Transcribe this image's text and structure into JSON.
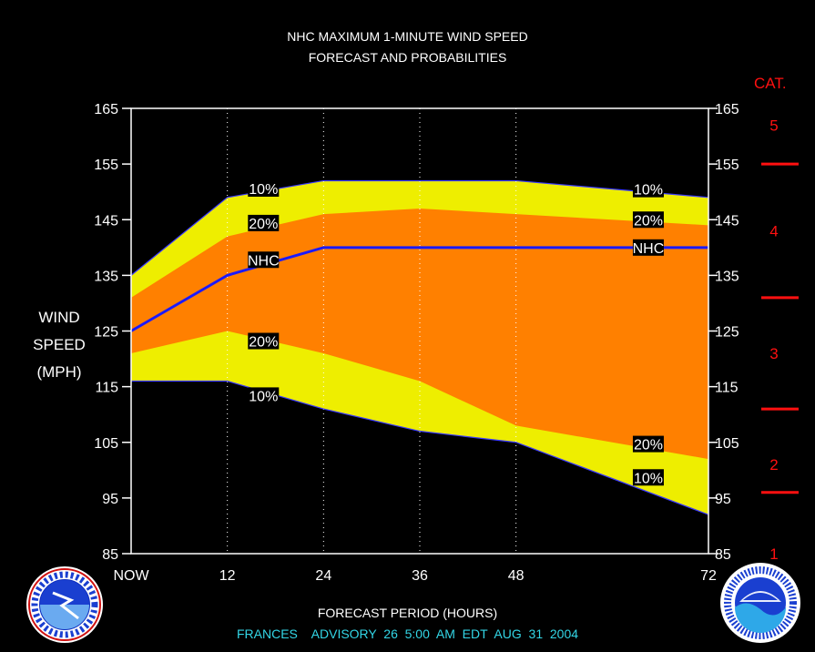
{
  "title_line1": "NHC MAXIMUM 1-MINUTE WIND SPEED",
  "title_line2": "FORECAST AND PROBABILITIES",
  "ylabel_lines": [
    "WIND",
    "SPEED",
    "(MPH)"
  ],
  "xlabel": "FORECAST PERIOD (HOURS)",
  "advisory": "FRANCES    ADVISORY  26  5:00  AM  EDT  AUG  31  2004",
  "category_title": "CAT.",
  "colors": {
    "background": "#000000",
    "band_outer": "#eeee00",
    "band_inner": "#ff8000",
    "forecast_line": "#1a1aff",
    "category_text": "#ff1010",
    "advisory_text": "#33d6e6"
  },
  "chart_data": {
    "type": "area",
    "x": [
      0,
      12,
      24,
      36,
      48,
      72
    ],
    "x_tick_labels": [
      {
        "x": 0,
        "label": "NOW"
      },
      {
        "x": 12,
        "label": "12"
      },
      {
        "x": 24,
        "label": "24"
      },
      {
        "x": 36,
        "label": "36"
      },
      {
        "x": 48,
        "label": "48"
      },
      {
        "x": 72,
        "label": "72"
      }
    ],
    "xlim": [
      0,
      72
    ],
    "ylim": [
      85,
      165
    ],
    "y_ticks": [
      85,
      95,
      105,
      115,
      125,
      135,
      145,
      155,
      165
    ],
    "grid": "vertical dotted at 12, 24, 36, 48",
    "series": [
      {
        "name": "10%",
        "role": "upper_outer",
        "values": [
          135,
          149,
          152,
          152,
          152,
          149
        ]
      },
      {
        "name": "20%",
        "role": "upper_inner",
        "values": [
          131,
          142,
          146,
          147,
          146,
          144
        ]
      },
      {
        "name": "NHC",
        "role": "forecast",
        "values": [
          125,
          135,
          140,
          140,
          140,
          140
        ]
      },
      {
        "name": "20%",
        "role": "lower_inner",
        "values": [
          121,
          125,
          121,
          116,
          108,
          102
        ]
      },
      {
        "name": "10%",
        "role": "lower_outer",
        "values": [
          116,
          116,
          111,
          107,
          105,
          92
        ]
      }
    ],
    "annotations": [
      {
        "text": "10%",
        "x": 16.5,
        "y": 150.6
      },
      {
        "text": "20%",
        "x": 16.5,
        "y": 144.4
      },
      {
        "text": "NHC",
        "x": 16.5,
        "y": 137.8
      },
      {
        "text": "20%",
        "x": 16.5,
        "y": 123.2
      },
      {
        "text": "10%",
        "x": 16.5,
        "y": 113.4
      },
      {
        "text": "10%",
        "x": 64.5,
        "y": 150.5
      },
      {
        "text": "20%",
        "x": 64.5,
        "y": 145.0
      },
      {
        "text": "NHC",
        "x": 64.5,
        "y": 140.0
      },
      {
        "text": "20%",
        "x": 64.5,
        "y": 104.7
      },
      {
        "text": "10%",
        "x": 64.5,
        "y": 98.7
      }
    ],
    "categories_scale": [
      {
        "label": "1",
        "y": 85
      },
      {
        "label": "2",
        "y": 101
      },
      {
        "label": "3",
        "y": 121
      },
      {
        "label": "4",
        "y": 143
      },
      {
        "label": "5",
        "y": 162
      }
    ],
    "category_thresholds": [
      96,
      111,
      131,
      155
    ]
  }
}
